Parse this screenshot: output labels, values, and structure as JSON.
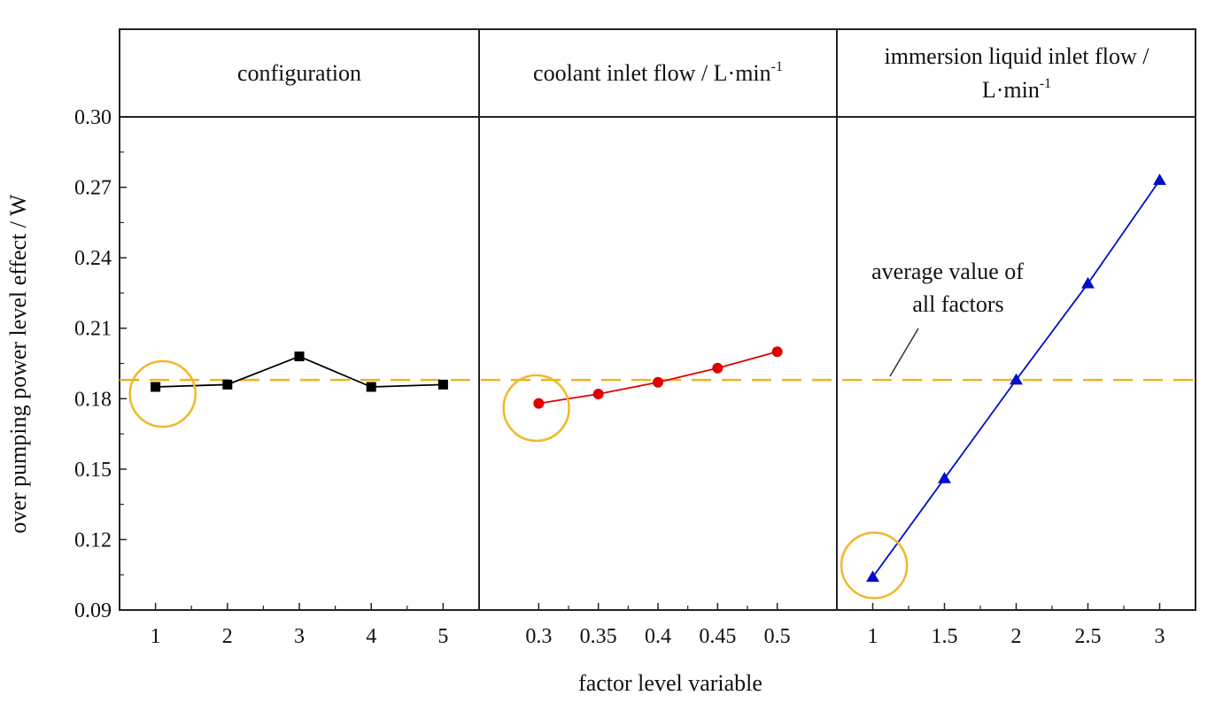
{
  "chart_data": {
    "type": "line",
    "ylabel": "over pumping power level effect / W",
    "xlabel": "factor level variable",
    "ylim": [
      0.09,
      0.3
    ],
    "yticks": [
      "0.09",
      "0.12",
      "0.15",
      "0.18",
      "0.21",
      "0.24",
      "0.27",
      "0.30"
    ],
    "average_value": 0.188,
    "annotation": {
      "line1": "average value of",
      "line2": "all factors"
    },
    "colors": {
      "average_line": "#f2b21b",
      "highlight_circle": "#f0b82a",
      "configuration": "#000000",
      "coolant": "#e00000",
      "immersion": "#0010c8"
    },
    "panels": [
      {
        "title": "configuration",
        "title_sup": "",
        "title_line2": "",
        "title_line2_sup": "",
        "x": [
          1,
          2,
          3,
          4,
          5
        ],
        "xticks": [
          "1",
          "2",
          "3",
          "4",
          "5"
        ],
        "xlim": [
          0.5,
          5.5
        ],
        "values": [
          0.185,
          0.186,
          0.198,
          0.185,
          0.186
        ],
        "marker": "square",
        "color": "#000000",
        "highlight": {
          "x": 1.1,
          "y": 0.182
        }
      },
      {
        "title": "coolant inlet flow / L·min",
        "title_sup": "-1",
        "title_line2": "",
        "title_line2_sup": "",
        "x": [
          0.3,
          0.35,
          0.4,
          0.45,
          0.5
        ],
        "xticks": [
          "0.3",
          "0.35",
          "0.4",
          "0.45",
          "0.5"
        ],
        "xlim": [
          0.25,
          0.55
        ],
        "values": [
          0.178,
          0.182,
          0.187,
          0.193,
          0.2
        ],
        "marker": "circle",
        "color": "#e00000",
        "highlight": {
          "x": 0.298,
          "y": 0.176
        }
      },
      {
        "title": "immersion liquid inlet flow /",
        "title_sup": "",
        "title_line2": "L·min",
        "title_line2_sup": "-1",
        "x": [
          1,
          1.5,
          2,
          2.5,
          3
        ],
        "xticks": [
          "1",
          "1.5",
          "2",
          "2.5",
          "3"
        ],
        "xlim": [
          0.75,
          3.25
        ],
        "values": [
          0.104,
          0.146,
          0.188,
          0.229,
          0.273
        ],
        "marker": "triangle",
        "color": "#0010c8",
        "highlight": {
          "x": 1.01,
          "y": 0.109
        }
      }
    ]
  }
}
